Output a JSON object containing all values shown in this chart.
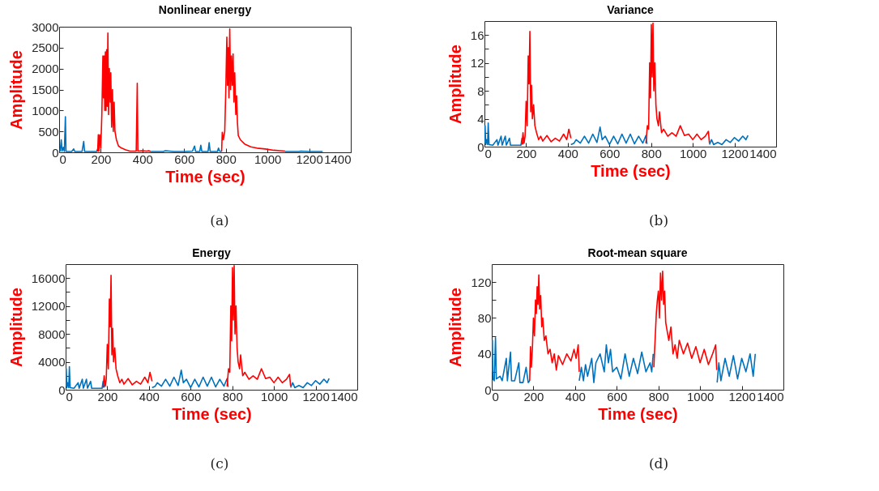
{
  "chart_data": [
    {
      "type": "line",
      "title": "Nonlinear energy",
      "xlabel": "Time (sec)",
      "ylabel": "Amplitude",
      "annotations": [
        "(a)"
      ],
      "xlim": [
        0,
        1400
      ],
      "xticks": [
        0,
        200,
        400,
        600,
        800,
        1000,
        1200,
        1400
      ],
      "ylim": [
        0,
        3000
      ],
      "yticks": [
        0,
        500,
        1000,
        1500,
        2000,
        2500,
        3000
      ],
      "series": [
        {
          "color": "#0072bd",
          "x": [
            5,
            10,
            14,
            20,
            25,
            30,
            33,
            60,
            70,
            75,
            110,
            118,
            122,
            150,
            180,
            185,
            190
          ],
          "values": [
            20,
            300,
            30,
            120,
            20,
            850,
            20,
            20,
            80,
            20,
            20,
            260,
            20,
            20,
            20,
            80,
            20
          ]
        },
        {
          "color": "#ff0000",
          "x": [
            185,
            188,
            191,
            195,
            200,
            205,
            210,
            213,
            216,
            219,
            222,
            225,
            228,
            231,
            234,
            237,
            241,
            245,
            248,
            252,
            256,
            260,
            264,
            268,
            275,
            285,
            300,
            320,
            340,
            370,
            375,
            378,
            400,
            420,
            430,
            440
          ],
          "values": [
            20,
            420,
            30,
            420,
            100,
            900,
            2300,
            1300,
            2300,
            1000,
            2400,
            1000,
            2450,
            1100,
            2850,
            900,
            2000,
            1200,
            1900,
            600,
            1500,
            500,
            1200,
            500,
            300,
            150,
            100,
            60,
            30,
            30,
            1650,
            30,
            40,
            30,
            40,
            20
          ]
        },
        {
          "color": "#0072bd",
          "x": [
            440,
            500,
            510,
            550,
            600,
            640,
            650,
            655,
            675,
            680,
            685,
            715,
            720,
            725,
            760,
            765,
            770,
            780
          ],
          "values": [
            20,
            20,
            40,
            20,
            20,
            30,
            150,
            20,
            20,
            170,
            20,
            20,
            230,
            20,
            20,
            100,
            30,
            20
          ]
        },
        {
          "color": "#ff0000",
          "x": [
            780,
            783,
            788,
            795,
            800,
            805,
            808,
            812,
            815,
            819,
            823,
            827,
            831,
            835,
            839,
            843,
            848,
            852,
            856,
            860,
            870,
            890,
            920,
            950,
            990,
            1030,
            1060,
            1085
          ],
          "values": [
            20,
            480,
            300,
            500,
            1500,
            2750,
            1600,
            2500,
            1300,
            2950,
            1500,
            2300,
            1600,
            2350,
            1200,
            1900,
            900,
            1350,
            700,
            400,
            300,
            200,
            130,
            100,
            80,
            50,
            40,
            30
          ]
        },
        {
          "color": "#0072bd",
          "x": [
            1085,
            1150,
            1160,
            1200,
            1265
          ],
          "values": [
            20,
            20,
            30,
            20,
            20
          ]
        }
      ]
    },
    {
      "type": "line",
      "title": "Variance",
      "xlabel": "Time (sec)",
      "ylabel": "Amplitude",
      "annotations": [
        "(b)"
      ],
      "xlim": [
        0,
        1400
      ],
      "xticks": [
        0,
        200,
        400,
        600,
        800,
        1000,
        1200,
        1400
      ],
      "ylim": [
        0,
        18
      ],
      "yticks": [
        0,
        {
          "value": 2,
          "label": null
        },
        4,
        {
          "value": 6,
          "label": null
        },
        8,
        {
          "value": 10,
          "label": null
        },
        12,
        {
          "value": 14,
          "label": null
        },
        16
      ],
      "series": [
        {
          "color": "#0072bd",
          "x": [
            0,
            3,
            6,
            10,
            15,
            18,
            22,
            40,
            60,
            65,
            80,
            85,
            100,
            105,
            120,
            125,
            150,
            175,
            180,
            185
          ],
          "values": [
            0.5,
            3,
            0.3,
            1,
            0.3,
            3.4,
            0.3,
            0.2,
            1,
            0.2,
            1.5,
            0.2,
            1.5,
            0.2,
            1.2,
            0.2,
            0.2,
            0.2,
            1.2,
            0.3
          ]
        },
        {
          "color": "#ff0000",
          "x": [
            180,
            185,
            190,
            195,
            200,
            205,
            210,
            214,
            218,
            222,
            226,
            230,
            236,
            242,
            250,
            260,
            270,
            280,
            300,
            320,
            340,
            360,
            380,
            395,
            405,
            415
          ],
          "values": [
            0.3,
            2,
            0.5,
            1.5,
            6.5,
            3,
            13,
            9,
            16.5,
            5,
            8.8,
            4,
            6,
            3,
            2,
            1,
            1.5,
            0.8,
            1.6,
            0.7,
            1.2,
            0.8,
            1.8,
            1,
            2.5,
            1.2
          ]
        },
        {
          "color": "#0072bd",
          "x": [
            415,
            430,
            440,
            460,
            480,
            500,
            520,
            540,
            555,
            565,
            580,
            600,
            620,
            640,
            660,
            680,
            700,
            720,
            740,
            760,
            775,
            780
          ],
          "values": [
            0.3,
            0.5,
            1,
            0.5,
            1.5,
            0.5,
            1.8,
            0.6,
            2.8,
            1,
            1.5,
            0.3,
            1.5,
            0.4,
            1.8,
            0.5,
            1.8,
            0.4,
            1.5,
            0.5,
            1.6,
            0.4
          ]
        },
        {
          "color": "#ff0000",
          "x": [
            775,
            782,
            788,
            793,
            797,
            801,
            805,
            809,
            813,
            818,
            823,
            828,
            835,
            840,
            850,
            860,
            880,
            900,
            920,
            940,
            960,
            980,
            1000,
            1020,
            1040,
            1060,
            1075,
            1080
          ],
          "values": [
            0.5,
            3,
            2.5,
            12,
            7,
            17.5,
            10,
            17.7,
            8,
            12,
            6,
            4,
            3,
            5,
            2,
            2.5,
            1.5,
            2,
            1.5,
            3,
            1.6,
            1.8,
            1,
            1.8,
            1,
            1.5,
            2.2,
            0.5
          ]
        },
        {
          "color": "#0072bd",
          "x": [
            1080,
            1090,
            1100,
            1120,
            1140,
            1160,
            1180,
            1200,
            1220,
            1240,
            1255,
            1265
          ],
          "values": [
            0.3,
            1,
            0.3,
            0.6,
            0.3,
            1,
            0.6,
            1.3,
            0.8,
            1.5,
            1,
            1.6
          ]
        }
      ]
    },
    {
      "type": "line",
      "title": "Energy",
      "xlabel": "Time (sec)",
      "ylabel": "Amplitude",
      "annotations": [
        "(c)"
      ],
      "xlim": [
        0,
        1400
      ],
      "xticks": [
        0,
        200,
        400,
        600,
        800,
        1000,
        1200,
        1400
      ],
      "ylim": [
        0,
        18000
      ],
      "yticks": [
        0,
        {
          "value": 2000,
          "label": null
        },
        4000,
        {
          "value": 6000,
          "label": null
        },
        8000,
        {
          "value": 10000,
          "label": null
        },
        12000,
        {
          "value": 14000,
          "label": null
        },
        16000
      ],
      "series": [
        {
          "color": "#0072bd",
          "x": [
            0,
            3,
            6,
            10,
            15,
            18,
            22,
            40,
            60,
            65,
            80,
            85,
            100,
            105,
            120,
            125,
            150,
            175,
            180,
            185
          ],
          "values": [
            500,
            3000,
            300,
            1000,
            300,
            3300,
            300,
            200,
            1000,
            200,
            1500,
            200,
            1500,
            200,
            1200,
            200,
            200,
            200,
            1200,
            300
          ]
        },
        {
          "color": "#ff0000",
          "x": [
            180,
            185,
            190,
            195,
            200,
            205,
            210,
            214,
            218,
            222,
            226,
            230,
            236,
            242,
            250,
            260,
            270,
            280,
            300,
            320,
            340,
            360,
            380,
            395,
            405,
            415
          ],
          "values": [
            300,
            2000,
            500,
            1500,
            6500,
            3000,
            13000,
            9000,
            16400,
            5000,
            8800,
            4000,
            6000,
            3000,
            2000,
            1000,
            1500,
            800,
            1600,
            700,
            1200,
            800,
            1800,
            1000,
            2500,
            1200
          ]
        },
        {
          "color": "#0072bd",
          "x": [
            415,
            430,
            440,
            460,
            480,
            500,
            520,
            540,
            555,
            565,
            580,
            600,
            620,
            640,
            660,
            680,
            700,
            720,
            740,
            760,
            775,
            780
          ],
          "values": [
            300,
            500,
            1000,
            500,
            1500,
            500,
            1800,
            600,
            2800,
            1000,
            1500,
            300,
            1500,
            400,
            1800,
            500,
            1800,
            400,
            1500,
            500,
            1600,
            400
          ]
        },
        {
          "color": "#ff0000",
          "x": [
            775,
            782,
            788,
            793,
            797,
            801,
            805,
            809,
            813,
            818,
            823,
            828,
            835,
            840,
            850,
            860,
            880,
            900,
            920,
            940,
            960,
            980,
            1000,
            1020,
            1040,
            1060,
            1075,
            1080
          ],
          "values": [
            500,
            3000,
            2500,
            12000,
            7000,
            17500,
            10000,
            17800,
            8000,
            12000,
            6000,
            4000,
            3000,
            5000,
            2000,
            2500,
            1500,
            2000,
            1500,
            3000,
            1600,
            1800,
            1000,
            1800,
            1000,
            1500,
            2200,
            500
          ]
        },
        {
          "color": "#0072bd",
          "x": [
            1080,
            1090,
            1100,
            1120,
            1140,
            1160,
            1180,
            1200,
            1220,
            1240,
            1255,
            1265
          ],
          "values": [
            300,
            1000,
            300,
            600,
            300,
            1000,
            600,
            1300,
            800,
            1500,
            1000,
            1600
          ]
        }
      ]
    },
    {
      "type": "line",
      "title": "Root-mean square",
      "xlabel": "Time (sec)",
      "ylabel": "Amplitude",
      "annotations": [
        "(d)"
      ],
      "xlim": [
        0,
        1400
      ],
      "xticks": [
        0,
        200,
        400,
        600,
        800,
        1000,
        1200,
        1400
      ],
      "ylim": [
        0,
        140
      ],
      "yticks": [
        0,
        {
          "value": 20,
          "label": null
        },
        40,
        {
          "value": 60,
          "label": null
        },
        80,
        {
          "value": 100,
          "label": null
        },
        120
      ],
      "series": [
        {
          "color": "#0072bd",
          "x": [
            0,
            3,
            6,
            12,
            18,
            22,
            40,
            50,
            70,
            75,
            90,
            95,
            110,
            130,
            135,
            150,
            165,
            175,
            182
          ],
          "values": [
            20,
            55,
            12,
            10,
            58,
            12,
            15,
            10,
            35,
            10,
            42,
            10,
            10,
            30,
            8,
            8,
            25,
            8,
            10
          ]
        },
        {
          "color": "#ff0000",
          "x": [
            182,
            186,
            190,
            195,
            200,
            205,
            210,
            214,
            218,
            222,
            226,
            230,
            235,
            240,
            245,
            252,
            260,
            270,
            280,
            290,
            300,
            310,
            320,
            340,
            360,
            380,
            395,
            405,
            415,
            420
          ],
          "values": [
            10,
            48,
            25,
            45,
            80,
            60,
            100,
            85,
            115,
            95,
            128,
            90,
            105,
            70,
            80,
            55,
            60,
            40,
            45,
            30,
            40,
            22,
            38,
            28,
            40,
            32,
            45,
            35,
            50,
            20
          ]
        },
        {
          "color": "#0072bd",
          "x": [
            420,
            430,
            440,
            450,
            460,
            480,
            490,
            500,
            520,
            540,
            550,
            560,
            570,
            580,
            600,
            620,
            640,
            660,
            680,
            700,
            720,
            740,
            760,
            768,
            775
          ],
          "values": [
            10,
            25,
            10,
            28,
            15,
            35,
            8,
            30,
            40,
            20,
            50,
            30,
            45,
            20,
            25,
            12,
            40,
            15,
            35,
            18,
            42,
            20,
            30,
            20,
            40
          ]
        },
        {
          "color": "#ff0000",
          "x": [
            778,
            785,
            790,
            795,
            800,
            805,
            810,
            815,
            820,
            825,
            830,
            835,
            840,
            850,
            860,
            870,
            880,
            890,
            900,
            920,
            940,
            960,
            980,
            1000,
            1020,
            1040,
            1060,
            1075,
            1080
          ],
          "values": [
            25,
            60,
            85,
            100,
            110,
            80,
            130,
            100,
            132,
            95,
            110,
            75,
            68,
            55,
            70,
            40,
            50,
            35,
            55,
            40,
            52,
            35,
            48,
            30,
            45,
            28,
            40,
            50,
            22
          ]
        },
        {
          "color": "#0072bd",
          "x": [
            1082,
            1090,
            1100,
            1120,
            1140,
            1160,
            1180,
            1200,
            1220,
            1240,
            1255,
            1265
          ],
          "values": [
            8,
            30,
            10,
            35,
            15,
            38,
            12,
            35,
            20,
            40,
            15,
            40
          ]
        }
      ]
    }
  ]
}
